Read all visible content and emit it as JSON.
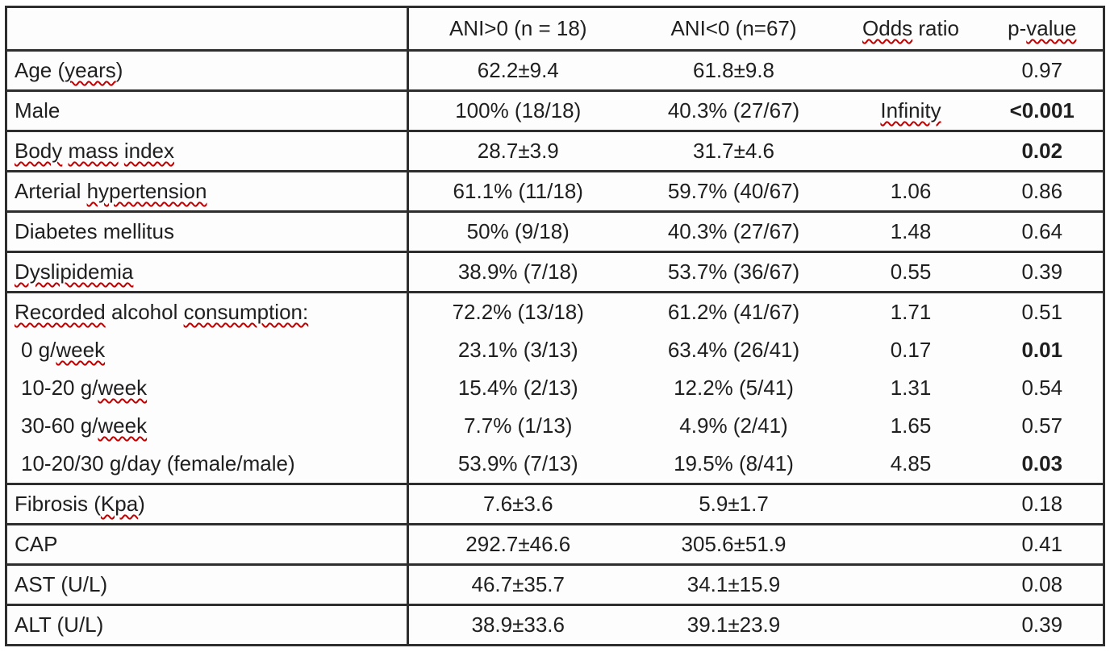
{
  "colors": {
    "border": "#2e2e2e",
    "text": "#1f1f1f",
    "squiggle": "#c00000",
    "background": "#fdfdfd"
  },
  "table": {
    "columns": [
      {
        "name": "row-label",
        "parts": []
      },
      {
        "name": "ani-gt0",
        "parts": [
          {
            "text": "ANI>0 (n = 18)",
            "misspelled": false
          }
        ]
      },
      {
        "name": "ani-lt0",
        "parts": [
          {
            "text": "ANI<0 (n=67)",
            "misspelled": false
          }
        ]
      },
      {
        "name": "odds-ratio",
        "parts": [
          {
            "text": "Odds",
            "misspelled": true
          },
          {
            "text": " ratio",
            "misspelled": false
          }
        ]
      },
      {
        "name": "p-value",
        "parts": [
          {
            "text": "p-",
            "misspelled": false
          },
          {
            "text": "value",
            "misspelled": true
          }
        ]
      }
    ],
    "rows": [
      {
        "lines": [
          {
            "indent": false,
            "label_parts": [
              {
                "text": "Age (",
                "misspelled": false
              },
              {
                "text": "years",
                "misspelled": true
              },
              {
                "text": ")",
                "misspelled": false
              }
            ],
            "cells": [
              {
                "text": "62.2±9.4",
                "bold": false,
                "misspelled": false
              },
              {
                "text": "61.8±9.8",
                "bold": false,
                "misspelled": false
              },
              {
                "text": "",
                "bold": false,
                "misspelled": false
              },
              {
                "text": "0.97",
                "bold": false,
                "misspelled": false
              }
            ]
          }
        ]
      },
      {
        "lines": [
          {
            "indent": false,
            "label_parts": [
              {
                "text": "Male",
                "misspelled": false
              }
            ],
            "cells": [
              {
                "text": "100% (18/18)",
                "bold": false,
                "misspelled": false
              },
              {
                "text": "40.3% (27/67)",
                "bold": false,
                "misspelled": false
              },
              {
                "text": "Infinity",
                "bold": false,
                "misspelled": true
              },
              {
                "text": "<0.001",
                "bold": true,
                "misspelled": false
              }
            ]
          }
        ]
      },
      {
        "lines": [
          {
            "indent": false,
            "label_parts": [
              {
                "text": "Body",
                "misspelled": true
              },
              {
                "text": " ",
                "misspelled": false
              },
              {
                "text": "mass",
                "misspelled": true
              },
              {
                "text": " ",
                "misspelled": false
              },
              {
                "text": "index",
                "misspelled": true
              }
            ],
            "cells": [
              {
                "text": "28.7±3.9",
                "bold": false,
                "misspelled": false
              },
              {
                "text": "31.7±4.6",
                "bold": false,
                "misspelled": false
              },
              {
                "text": "",
                "bold": false,
                "misspelled": false
              },
              {
                "text": "0.02",
                "bold": true,
                "misspelled": false
              }
            ]
          }
        ]
      },
      {
        "lines": [
          {
            "indent": false,
            "label_parts": [
              {
                "text": "Arterial ",
                "misspelled": false
              },
              {
                "text": "hypertension",
                "misspelled": true
              }
            ],
            "cells": [
              {
                "text": "61.1% (11/18)",
                "bold": false,
                "misspelled": false
              },
              {
                "text": "59.7% (40/67)",
                "bold": false,
                "misspelled": false
              },
              {
                "text": "1.06",
                "bold": false,
                "misspelled": false
              },
              {
                "text": "0.86",
                "bold": false,
                "misspelled": false
              }
            ]
          }
        ]
      },
      {
        "lines": [
          {
            "indent": false,
            "label_parts": [
              {
                "text": "Diabetes mellitus",
                "misspelled": false
              }
            ],
            "cells": [
              {
                "text": "50% (9/18)",
                "bold": false,
                "misspelled": false
              },
              {
                "text": "40.3% (27/67)",
                "bold": false,
                "misspelled": false
              },
              {
                "text": "1.48",
                "bold": false,
                "misspelled": false
              },
              {
                "text": "0.64",
                "bold": false,
                "misspelled": false
              }
            ]
          }
        ]
      },
      {
        "lines": [
          {
            "indent": false,
            "label_parts": [
              {
                "text": "Dyslipidemia",
                "misspelled": true
              }
            ],
            "cells": [
              {
                "text": "38.9% (7/18)",
                "bold": false,
                "misspelled": false
              },
              {
                "text": "53.7% (36/67)",
                "bold": false,
                "misspelled": false
              },
              {
                "text": "0.55",
                "bold": false,
                "misspelled": false
              },
              {
                "text": "0.39",
                "bold": false,
                "misspelled": false
              }
            ]
          }
        ]
      },
      {
        "lines": [
          {
            "indent": false,
            "label_parts": [
              {
                "text": "Recorded",
                "misspelled": true
              },
              {
                "text": " alcohol ",
                "misspelled": false
              },
              {
                "text": "consumption:",
                "misspelled": true
              }
            ],
            "cells": [
              {
                "text": "72.2% (13/18)",
                "bold": false,
                "misspelled": false
              },
              {
                "text": "61.2% (41/67)",
                "bold": false,
                "misspelled": false
              },
              {
                "text": "1.71",
                "bold": false,
                "misspelled": false
              },
              {
                "text": "0.51",
                "bold": false,
                "misspelled": false
              }
            ]
          },
          {
            "indent": true,
            "label_parts": [
              {
                "text": "0 g/",
                "misspelled": false
              },
              {
                "text": "week",
                "misspelled": true
              }
            ],
            "cells": [
              {
                "text": "23.1% (3/13)",
                "bold": false,
                "misspelled": false
              },
              {
                "text": "63.4% (26/41)",
                "bold": false,
                "misspelled": false
              },
              {
                "text": "0.17",
                "bold": false,
                "misspelled": false
              },
              {
                "text": "0.01",
                "bold": true,
                "misspelled": false
              }
            ]
          },
          {
            "indent": true,
            "label_parts": [
              {
                "text": "10-20 g/",
                "misspelled": false
              },
              {
                "text": "week",
                "misspelled": true
              }
            ],
            "cells": [
              {
                "text": "15.4% (2/13)",
                "bold": false,
                "misspelled": false
              },
              {
                "text": "12.2% (5/41)",
                "bold": false,
                "misspelled": false
              },
              {
                "text": "1.31",
                "bold": false,
                "misspelled": false
              },
              {
                "text": "0.54",
                "bold": false,
                "misspelled": false
              }
            ]
          },
          {
            "indent": true,
            "label_parts": [
              {
                "text": "30-60 g/",
                "misspelled": false
              },
              {
                "text": "week",
                "misspelled": true
              }
            ],
            "cells": [
              {
                "text": "7.7% (1/13)",
                "bold": false,
                "misspelled": false
              },
              {
                "text": "4.9% (2/41)",
                "bold": false,
                "misspelled": false
              },
              {
                "text": "1.65",
                "bold": false,
                "misspelled": false
              },
              {
                "text": "0.57",
                "bold": false,
                "misspelled": false
              }
            ]
          },
          {
            "indent": true,
            "label_parts": [
              {
                "text": "10-20/30 g/day (female/male)",
                "misspelled": false
              }
            ],
            "cells": [
              {
                "text": "53.9% (7/13)",
                "bold": false,
                "misspelled": false
              },
              {
                "text": "19.5% (8/41)",
                "bold": false,
                "misspelled": false
              },
              {
                "text": "4.85",
                "bold": false,
                "misspelled": false
              },
              {
                "text": "0.03",
                "bold": true,
                "misspelled": false
              }
            ]
          }
        ]
      },
      {
        "lines": [
          {
            "indent": false,
            "label_parts": [
              {
                "text": "Fibrosis (",
                "misspelled": false
              },
              {
                "text": "Kpa",
                "misspelled": true
              },
              {
                "text": ")",
                "misspelled": false
              }
            ],
            "cells": [
              {
                "text": "7.6±3.6",
                "bold": false,
                "misspelled": false
              },
              {
                "text": "5.9±1.7",
                "bold": false,
                "misspelled": false
              },
              {
                "text": "",
                "bold": false,
                "misspelled": false
              },
              {
                "text": "0.18",
                "bold": false,
                "misspelled": false
              }
            ]
          }
        ]
      },
      {
        "lines": [
          {
            "indent": false,
            "label_parts": [
              {
                "text": "CAP",
                "misspelled": false
              }
            ],
            "cells": [
              {
                "text": "292.7±46.6",
                "bold": false,
                "misspelled": false
              },
              {
                "text": "305.6±51.9",
                "bold": false,
                "misspelled": false
              },
              {
                "text": "",
                "bold": false,
                "misspelled": false
              },
              {
                "text": "0.41",
                "bold": false,
                "misspelled": false
              }
            ]
          }
        ]
      },
      {
        "lines": [
          {
            "indent": false,
            "label_parts": [
              {
                "text": "AST (U/L)",
                "misspelled": false
              }
            ],
            "cells": [
              {
                "text": "46.7±35.7",
                "bold": false,
                "misspelled": false
              },
              {
                "text": "34.1±15.9",
                "bold": false,
                "misspelled": false
              },
              {
                "text": "",
                "bold": false,
                "misspelled": false
              },
              {
                "text": "0.08",
                "bold": false,
                "misspelled": false
              }
            ]
          }
        ]
      },
      {
        "lines": [
          {
            "indent": false,
            "label_parts": [
              {
                "text": "ALT (U/L)",
                "misspelled": false
              }
            ],
            "cells": [
              {
                "text": "38.9±33.6",
                "bold": false,
                "misspelled": false
              },
              {
                "text": "39.1±23.9",
                "bold": false,
                "misspelled": false
              },
              {
                "text": "",
                "bold": false,
                "misspelled": false
              },
              {
                "text": "0.39",
                "bold": false,
                "misspelled": false
              }
            ]
          }
        ]
      }
    ]
  }
}
